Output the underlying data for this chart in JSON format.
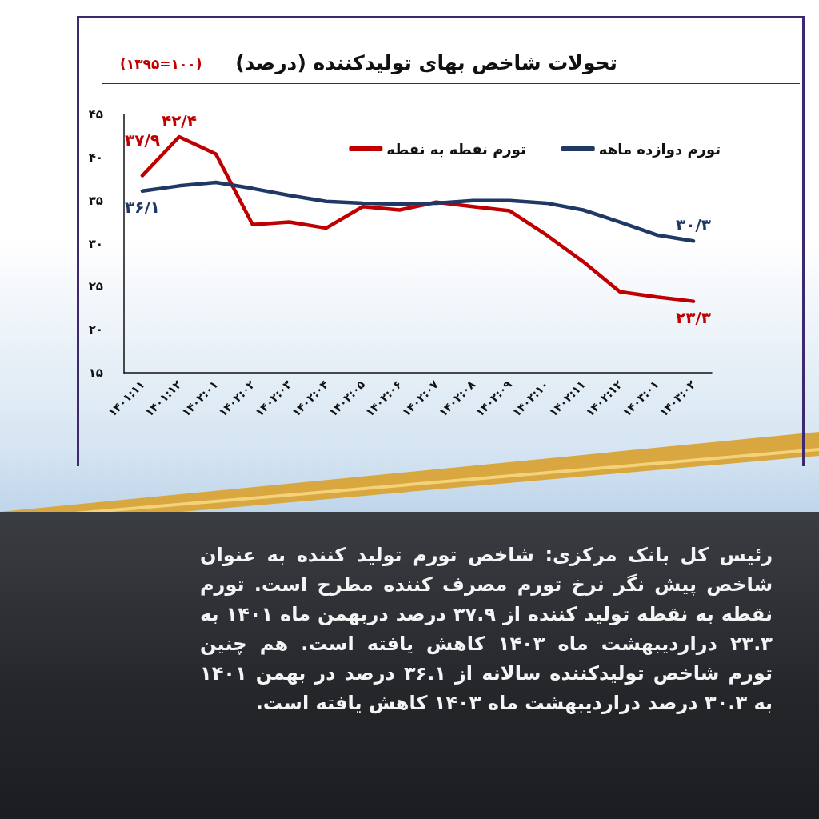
{
  "chart_data": {
    "type": "line",
    "title": "تحولات شاخص بهای تولیدکننده (درصد)",
    "subtitle": "(۱۰۰=۱۳۹۵)",
    "categories": [
      "۱۴۰۱:۱۱",
      "۱۴۰۱:۱۲",
      "۱۴۰۲:۰۱",
      "۱۴۰۲:۰۲",
      "۱۴۰۲:۰۳",
      "۱۴۰۲:۰۴",
      "۱۴۰۲:۰۵",
      "۱۴۰۲:۰۶",
      "۱۴۰۲:۰۷",
      "۱۴۰۲:۰۸",
      "۱۴۰۲:۰۹",
      "۱۴۰۲:۱۰",
      "۱۴۰۲:۱۱",
      "۱۴۰۲:۱۲",
      "۱۴۰۳:۰۱",
      "۱۴۰۳:۰۲"
    ],
    "series": [
      {
        "name": "تورم نقطه به نقطه",
        "color": "#c00000",
        "values": [
          37.9,
          42.4,
          40.4,
          32.2,
          32.5,
          31.8,
          34.3,
          33.9,
          34.8,
          34.3,
          33.8,
          31.0,
          27.9,
          24.4,
          23.8,
          23.3
        ],
        "value_labels": [
          "۳۷/۹",
          "۴۲/۴",
          null,
          null,
          null,
          null,
          null,
          null,
          null,
          null,
          null,
          null,
          null,
          null,
          null,
          "۲۳/۳"
        ]
      },
      {
        "name": "تورم دوازده ماهه",
        "color": "#1f3864",
        "values": [
          36.1,
          36.7,
          37.1,
          36.4,
          35.6,
          34.9,
          34.7,
          34.6,
          34.7,
          35.0,
          35.0,
          34.7,
          33.9,
          32.5,
          31.0,
          30.3
        ],
        "value_labels": [
          "۳۶/۱",
          null,
          null,
          null,
          null,
          null,
          null,
          null,
          null,
          null,
          null,
          null,
          null,
          null,
          null,
          "۳۰/۳"
        ]
      }
    ],
    "ylim": [
      15,
      45
    ],
    "yticks": [
      {
        "value": 15,
        "label": "۱۵"
      },
      {
        "value": 20,
        "label": "۲۰"
      },
      {
        "value": 25,
        "label": "۲۵"
      },
      {
        "value": 30,
        "label": "۳۰"
      },
      {
        "value": 35,
        "label": "۳۵"
      },
      {
        "value": 40,
        "label": "۴۰"
      },
      {
        "value": 45,
        "label": "۴۵"
      }
    ],
    "grid": false,
    "legend": "top right",
    "marker": "none",
    "line_style": "solid",
    "annotations": [
      "رئیس کل بانک مرکزی: شاخص تورم تولید کننده به عنوان شاخص پیش نگر نرخ تورم مصرف کننده مطرح است. تورم نقطه به نقطه تولید کننده از ۳۷.۹ درصد دربهمن ماه ۱۴۰۱ به ۲۳.۳ دراردیبهشت ماه ۱۴۰۳ کاهش یافته است. هم چنین تورم شاخص تولیدکننده سالانه از ۳۶.۱ درصد در بهمن ۱۴۰۱ به ۳۰.۳ درصد دراردیبهشت ماه ۱۴۰۳ کاهش یافته است."
    ]
  }
}
